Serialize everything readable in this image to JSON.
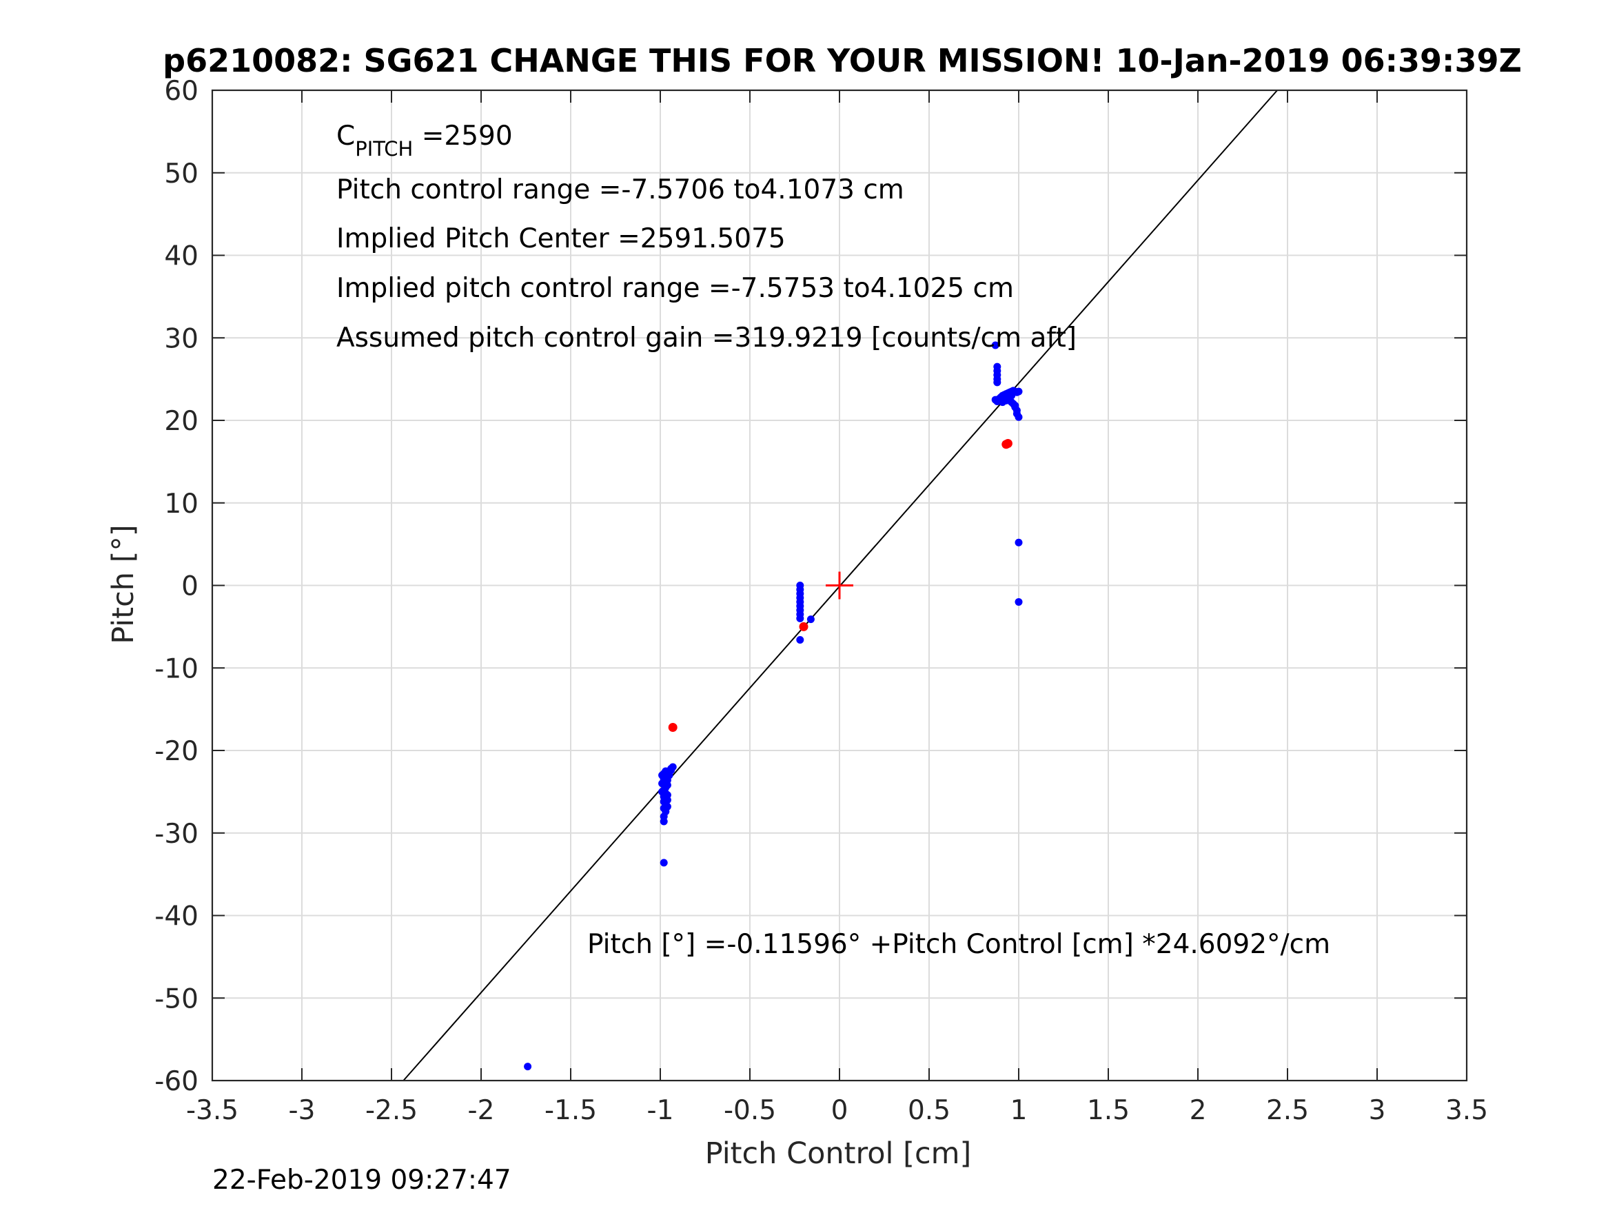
{
  "chart_data": {
    "type": "scatter",
    "title": "p6210082: SG621 CHANGE THIS FOR YOUR MISSION! 10-Jan-2019 06:39:39Z",
    "xlabel": "Pitch Control [cm]",
    "ylabel": "Pitch [°]",
    "xlim": [
      -3.5,
      3.5
    ],
    "ylim": [
      -60,
      60
    ],
    "xticks": [
      -3.5,
      -3,
      -2.5,
      -2,
      -1.5,
      -1,
      -0.5,
      0,
      0.5,
      1,
      1.5,
      2,
      2.5,
      3,
      3.5
    ],
    "xtick_labels": [
      "-3.5",
      "-3",
      "-2.5",
      "-2",
      "-1.5",
      "-1",
      "-0.5",
      "0",
      "0.5",
      "1",
      "1.5",
      "2",
      "2.5",
      "3",
      "3.5"
    ],
    "yticks": [
      -60,
      -50,
      -40,
      -30,
      -20,
      -10,
      0,
      10,
      20,
      30,
      40,
      50,
      60
    ],
    "ytick_labels": [
      "-60",
      "-50",
      "-40",
      "-30",
      "-20",
      "-10",
      "0",
      "10",
      "20",
      "30",
      "40",
      "50",
      "60"
    ],
    "grid": true,
    "fit_line": {
      "intercept": -0.11596,
      "slope": 24.6092,
      "color": "#000000"
    },
    "center_marker": {
      "x": 0,
      "y": 0,
      "color": "#ff0000"
    },
    "series": [
      {
        "color": "#0000ff",
        "points": [
          [
            -1.74,
            -58.3
          ],
          [
            -0.98,
            -33.6
          ],
          [
            -0.98,
            -28.6
          ],
          [
            -0.98,
            -28.0
          ],
          [
            -0.97,
            -27.4
          ],
          [
            -0.98,
            -27.0
          ],
          [
            -0.97,
            -26.6
          ],
          [
            -0.98,
            -26.2
          ],
          [
            -0.96,
            -26.0
          ],
          [
            -0.98,
            -25.6
          ],
          [
            -0.97,
            -25.2
          ],
          [
            -0.98,
            -24.8
          ],
          [
            -0.97,
            -24.5
          ],
          [
            -0.96,
            -24.2
          ],
          [
            -0.98,
            -24.0
          ],
          [
            -0.97,
            -23.8
          ],
          [
            -0.96,
            -23.6
          ],
          [
            -0.98,
            -23.4
          ],
          [
            -0.97,
            -23.2
          ],
          [
            -0.95,
            -23.0
          ],
          [
            -0.98,
            -22.8
          ],
          [
            -0.96,
            -22.8
          ],
          [
            -0.95,
            -22.6
          ],
          [
            -0.94,
            -22.4
          ],
          [
            -0.94,
            -22.2
          ],
          [
            -0.93,
            -22.0
          ],
          [
            -0.97,
            -22.5
          ],
          [
            -0.99,
            -23.0
          ],
          [
            -0.99,
            -24.0
          ],
          [
            -0.99,
            -25.0
          ],
          [
            -0.96,
            -25.4
          ],
          [
            -0.96,
            -26.8
          ],
          [
            -0.22,
            0.0
          ],
          [
            -0.22,
            -0.5
          ],
          [
            -0.22,
            -1.0
          ],
          [
            -0.22,
            -1.5
          ],
          [
            -0.22,
            -2.0
          ],
          [
            -0.22,
            -2.5
          ],
          [
            -0.22,
            -3.0
          ],
          [
            -0.22,
            -3.5
          ],
          [
            -0.22,
            -4.0
          ],
          [
            -0.16,
            -4.1
          ],
          [
            -0.22,
            -6.6
          ],
          [
            0.87,
            29.1
          ],
          [
            0.88,
            26.5
          ],
          [
            0.88,
            26.0
          ],
          [
            0.88,
            25.5
          ],
          [
            0.88,
            25.0
          ],
          [
            0.88,
            24.6
          ],
          [
            0.87,
            22.5
          ],
          [
            0.88,
            22.3
          ],
          [
            0.89,
            22.6
          ],
          [
            0.9,
            22.8
          ],
          [
            0.91,
            23.0
          ],
          [
            0.92,
            23.1
          ],
          [
            0.93,
            23.2
          ],
          [
            0.94,
            23.3
          ],
          [
            0.95,
            23.4
          ],
          [
            0.96,
            23.5
          ],
          [
            0.97,
            23.6
          ],
          [
            0.98,
            23.5
          ],
          [
            0.99,
            23.4
          ],
          [
            1.0,
            23.5
          ],
          [
            0.9,
            22.5
          ],
          [
            0.92,
            22.6
          ],
          [
            0.94,
            22.8
          ],
          [
            0.95,
            22.4
          ],
          [
            0.96,
            22.2
          ],
          [
            0.97,
            22.0
          ],
          [
            0.98,
            21.8
          ],
          [
            0.98,
            21.6
          ],
          [
            0.99,
            21.2
          ],
          [
            0.99,
            20.8
          ],
          [
            1.0,
            20.4
          ],
          [
            0.96,
            23.0
          ],
          [
            0.93,
            22.4
          ],
          [
            0.91,
            22.2
          ],
          [
            1.0,
            5.2
          ],
          [
            1.0,
            -2.0
          ]
        ]
      },
      {
        "color": "#ff0000",
        "points": [
          [
            -0.93,
            -17.2
          ],
          [
            0.93,
            17.1
          ],
          [
            0.94,
            17.2
          ],
          [
            -0.2,
            -5.0
          ]
        ]
      }
    ],
    "annotations": {
      "cpitch_main": "C",
      "cpitch_sub": "PITCH",
      "cpitch_value": " =2590",
      "range": "Pitch control range =-7.5706 to4.1073 cm",
      "implied_center": "Implied Pitch Center =2591.5075",
      "implied_range": "Implied pitch control range =-7.5753 to4.1025 cm",
      "gain": "Assumed pitch control gain =319.9219 [counts/cm aft]",
      "fit_equation": "Pitch [°] =-0.11596° +Pitch Control [cm] *24.6092°/cm"
    },
    "timestamp": "22-Feb-2019 09:27:47"
  }
}
